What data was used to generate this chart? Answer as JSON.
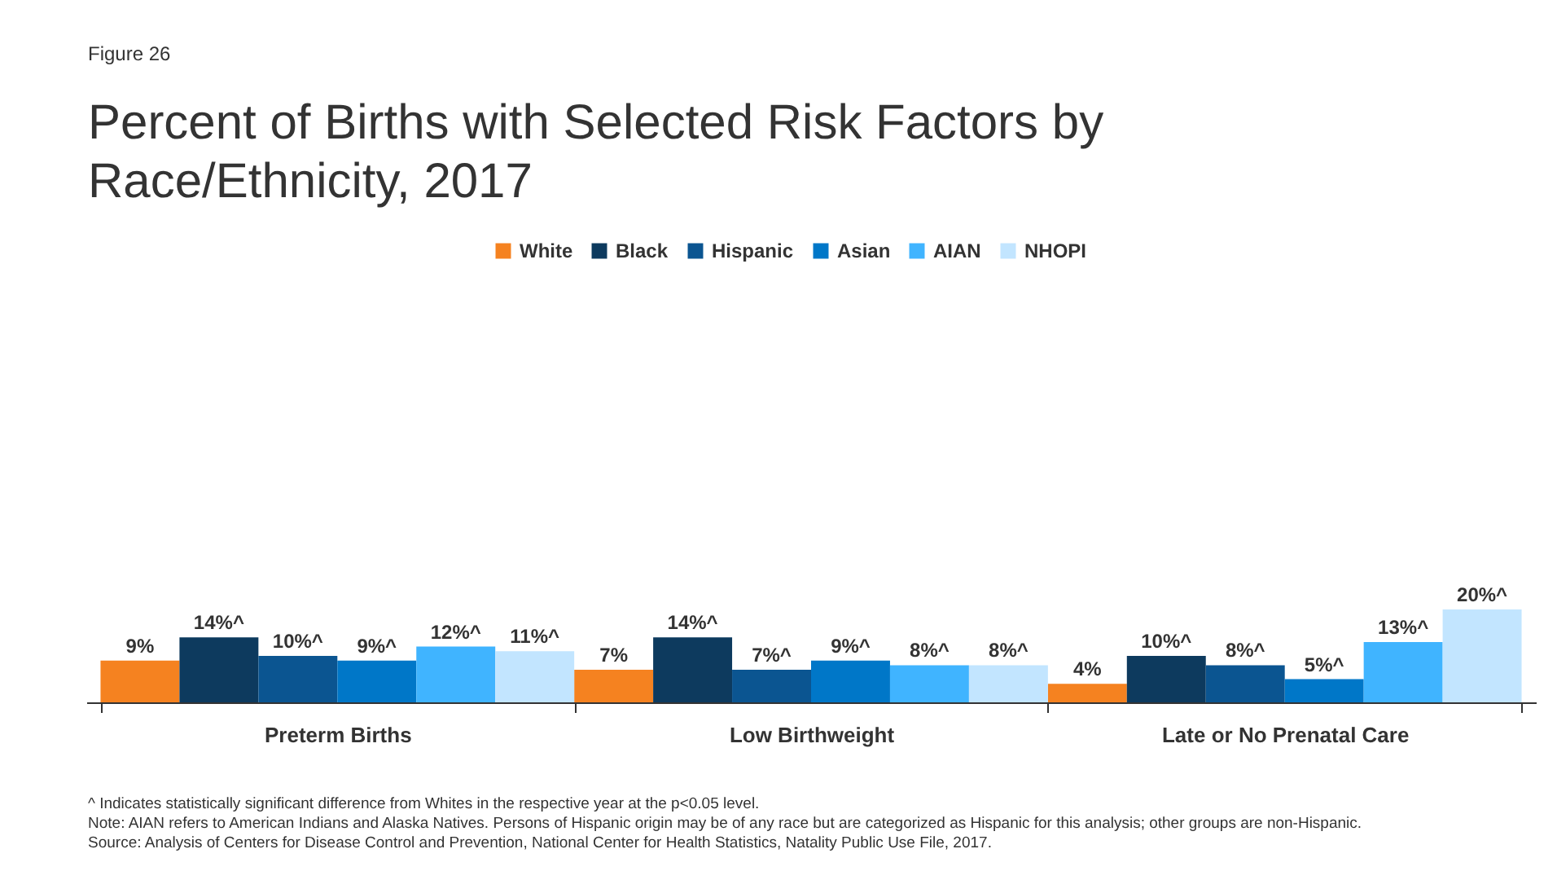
{
  "chart_data": {
    "type": "bar",
    "title": "Percent of Births with Selected Risk Factors by Race/Ethnicity, 2017",
    "categories": [
      "Preterm Births",
      "Low Birthweight",
      "Late or No Prenatal Care"
    ],
    "series": [
      {
        "name": "White",
        "color": "#f58220",
        "values": [
          9,
          7,
          4
        ],
        "value_labels": [
          "9%",
          "7%",
          "4%"
        ]
      },
      {
        "name": "Black",
        "color": "#0d3a5e",
        "values": [
          14,
          14,
          10
        ],
        "value_labels": [
          "14%^",
          "14%^",
          "10%^"
        ]
      },
      {
        "name": "Hispanic",
        "color": "#0b5591",
        "values": [
          10,
          7,
          8
        ],
        "value_labels": [
          "10%^",
          "7%^",
          "8%^"
        ]
      },
      {
        "name": "Asian",
        "color": "#0077c8",
        "values": [
          9,
          9,
          5
        ],
        "value_labels": [
          "9%^",
          "9%^",
          "5%^"
        ]
      },
      {
        "name": "AIAN",
        "color": "#40b4ff",
        "values": [
          12,
          8,
          13
        ],
        "value_labels": [
          "12%^",
          "8%^",
          "13%^"
        ]
      },
      {
        "name": "NHOPI",
        "color": "#c2e5ff",
        "values": [
          11,
          8,
          20
        ],
        "value_labels": [
          "11%^",
          "8%^",
          "20%^"
        ]
      }
    ],
    "legend": "top",
    "grid": false,
    "tick_labels": "x",
    "annotations": [
      "Figure 26",
      "^ Indicates statistically significant difference from Whites in the respective year at the p<0.05 level.",
      "Note: AIAN refers to American Indians and Alaska Natives. Persons of Hispanic origin may be of any race but are categorized as Hispanic for this analysis; other groups are non-Hispanic.",
      "Source: Analysis of Centers for Disease Control and Prevention, National Center for Health Statistics, Natality Public Use File, 2017."
    ]
  }
}
